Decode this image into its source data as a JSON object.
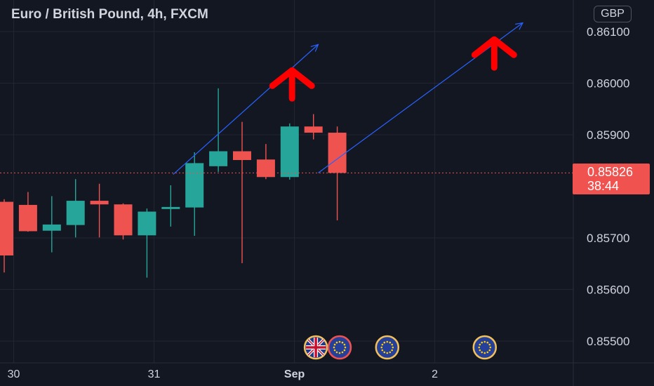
{
  "header": {
    "title": "Euro / British Pound, 4h, FXCM",
    "currency": "GBP"
  },
  "last_price": {
    "value": "0.85826",
    "countdown": "38:44"
  },
  "colors": {
    "background": "#131722",
    "grid": "#232632",
    "up": "#26a69a",
    "down": "#ef5350",
    "trend_line": "#2962ff",
    "arrow": "#ff0000",
    "last_price": "#f0524f",
    "text": "#d1d4dc"
  },
  "chart_data": {
    "type": "candlestick",
    "title": "Euro / British Pound, 4h, FXCM",
    "currency": "GBP",
    "ylim": [
      0.8544,
      0.8618
    ],
    "y_ticks": [
      "0.86100",
      "0.86000",
      "0.85900",
      "0.85700",
      "0.85600",
      "0.85500"
    ],
    "x_ticks": [
      {
        "label": "30",
        "index": 0.4
      },
      {
        "label": "31",
        "index": 6.3
      },
      {
        "label": "Sep",
        "index": 12.2
      },
      {
        "label": "2",
        "index": 18.1
      }
    ],
    "grid": true,
    "candles": [
      {
        "o": 0.8577,
        "h": 0.85775,
        "l": 0.85633,
        "c": 0.85666
      },
      {
        "o": 0.85764,
        "h": 0.85789,
        "l": 0.85712,
        "c": 0.85713
      },
      {
        "o": 0.85714,
        "h": 0.85781,
        "l": 0.85672,
        "c": 0.85726
      },
      {
        "o": 0.85725,
        "h": 0.85814,
        "l": 0.85701,
        "c": 0.85772
      },
      {
        "o": 0.85772,
        "h": 0.85805,
        "l": 0.85701,
        "c": 0.85765
      },
      {
        "o": 0.85765,
        "h": 0.85767,
        "l": 0.85697,
        "c": 0.85705
      },
      {
        "o": 0.85705,
        "h": 0.85757,
        "l": 0.85623,
        "c": 0.85751
      },
      {
        "o": 0.85756,
        "h": 0.85802,
        "l": 0.85722,
        "c": 0.8576
      },
      {
        "o": 0.85759,
        "h": 0.85866,
        "l": 0.85704,
        "c": 0.85845
      },
      {
        "o": 0.85839,
        "h": 0.8599,
        "l": 0.85828,
        "c": 0.85868
      },
      {
        "o": 0.85868,
        "h": 0.85925,
        "l": 0.85651,
        "c": 0.85851
      },
      {
        "o": 0.85852,
        "h": 0.85882,
        "l": 0.85814,
        "c": 0.85818
      },
      {
        "o": 0.85818,
        "h": 0.85922,
        "l": 0.85813,
        "c": 0.85916
      },
      {
        "o": 0.85916,
        "h": 0.8594,
        "l": 0.85891,
        "c": 0.85904
      },
      {
        "o": 0.85904,
        "h": 0.85916,
        "l": 0.85734,
        "c": 0.85826
      }
    ],
    "last_price": 0.85826,
    "last_price_line": "dashed",
    "trend_lines": [
      {
        "from": [
          7.1,
          0.85823
        ],
        "to": [
          13.2,
          0.86075
        ]
      },
      {
        "from": [
          13.2,
          0.85826
        ],
        "to": [
          21.8,
          0.86117
        ]
      }
    ],
    "arrows": [
      {
        "index": 12.1,
        "price": 0.86003,
        "direction": "up"
      },
      {
        "index": 20.6,
        "price": 0.86063,
        "direction": "up"
      }
    ],
    "events": [
      {
        "index": 13.1,
        "icon": "uk-flag-icon",
        "ring": "#f0c05a"
      },
      {
        "index": 14.1,
        "icon": "eu-flag-icon",
        "ring": "#ef5350"
      },
      {
        "index": 16.1,
        "icon": "eu-flag-icon",
        "ring": "#f0c05a"
      },
      {
        "index": 20.2,
        "icon": "eu-flag-icon",
        "ring": "#f0c05a"
      }
    ]
  }
}
